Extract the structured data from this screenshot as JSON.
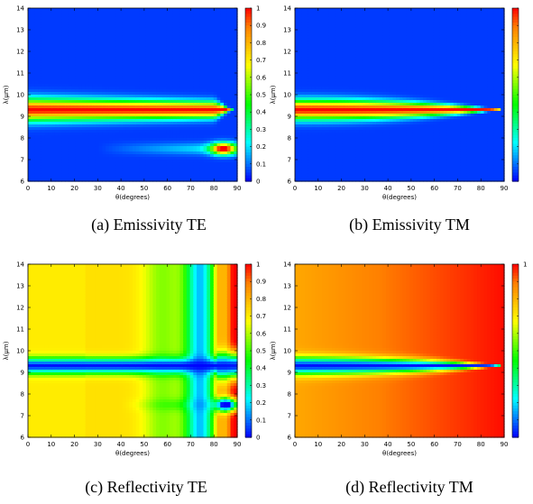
{
  "colorscale": [
    "#0000ff",
    "#0080ff",
    "#00ffff",
    "#00ff80",
    "#00ff00",
    "#80ff00",
    "#ffff00",
    "#ffc000",
    "#ff8000",
    "#ff0000"
  ],
  "chart_data": [
    {
      "type": "heatmap",
      "id": "a",
      "caption": "(a) Emissivity TE",
      "xlabel": "θ(degrees)",
      "ylabel": "λ(μm)",
      "xlim": [
        0,
        90
      ],
      "ylim": [
        6,
        14
      ],
      "zlim": [
        0,
        1
      ],
      "xticks": [
        0,
        10,
        20,
        30,
        40,
        50,
        60,
        70,
        80,
        90
      ],
      "yticks": [
        6,
        7,
        8,
        9,
        10,
        11,
        12,
        13,
        14
      ],
      "cbticks": [
        0,
        0.1,
        0.2,
        0.3,
        0.4,
        0.5,
        0.6,
        0.7,
        0.8,
        0.9,
        1
      ],
      "features": [
        {
          "kind": "resonance_band",
          "lambda_um": 9.3,
          "peak_value": 1.0,
          "extends_to_deg": 85,
          "behavior": "narrows toward grazing"
        },
        {
          "kind": "resonance_band",
          "lambda_um": 7.5,
          "peak_value": 1.0,
          "peak_at_deg": 84,
          "behavior": "faint below 60 deg, strong near 80-87 deg"
        }
      ]
    },
    {
      "type": "heatmap",
      "id": "b",
      "caption": "(b) Emissivity TM",
      "xlabel": "θ(degrees)",
      "ylabel": "λ(μm)",
      "xlim": [
        0,
        90
      ],
      "ylim": [
        6,
        14
      ],
      "zlim": [
        0,
        1
      ],
      "xticks": [
        0,
        10,
        20,
        30,
        40,
        50,
        60,
        70,
        80,
        90
      ],
      "yticks": [
        6,
        7,
        8,
        9,
        10,
        11,
        12,
        13,
        14
      ],
      "cbticks": [],
      "features": [
        {
          "kind": "resonance_band",
          "lambda_um": 9.3,
          "peak_value": 1.0,
          "extends_to_deg": 88,
          "behavior": "tapers to a point near 88 deg"
        }
      ]
    },
    {
      "type": "heatmap",
      "id": "c",
      "caption": "(c) Reflectivity TE",
      "xlabel": "θ(degrees)",
      "ylabel": "λ(μm)",
      "xlim": [
        0,
        90
      ],
      "ylim": [
        6,
        14
      ],
      "zlim": [
        0,
        1
      ],
      "xticks": [
        0,
        10,
        20,
        30,
        40,
        50,
        60,
        70,
        80,
        90
      ],
      "yticks": [
        6,
        7,
        8,
        9,
        10,
        11,
        12,
        13,
        14
      ],
      "cbticks": [
        0,
        0.1,
        0.2,
        0.3,
        0.4,
        0.5,
        0.6,
        0.7,
        0.8,
        0.9,
        1
      ],
      "features": [
        {
          "kind": "background",
          "value_range": [
            0.6,
            0.8
          ],
          "behavior": "yellow at low angle, green 55-65 deg, blue dip near 70-78 deg, red near 88 deg"
        },
        {
          "kind": "dip",
          "lambda_um": 9.3,
          "min_value": 0.0
        },
        {
          "kind": "dip",
          "lambda_um": 7.5,
          "min_value": 0.0,
          "at_deg": 84
        }
      ]
    },
    {
      "type": "heatmap",
      "id": "d",
      "caption": "(d) Reflectivity TM",
      "xlabel": "θ(degrees)",
      "ylabel": "λ(μm)",
      "xlim": [
        0,
        90
      ],
      "ylim": [
        6,
        14
      ],
      "zlim": [
        0,
        1
      ],
      "xticks": [
        0,
        10,
        20,
        30,
        40,
        50,
        60,
        70,
        80,
        90
      ],
      "yticks": [
        6,
        7,
        8,
        9,
        10,
        11,
        12,
        13,
        14
      ],
      "cbticks": [
        "1"
      ],
      "features": [
        {
          "kind": "background",
          "value_range": [
            0.8,
            1.0
          ],
          "behavior": "orange at low angle rising to red at grazing"
        },
        {
          "kind": "dip",
          "lambda_um": 9.3,
          "min_value": 0.0,
          "extends_to_deg": 88
        }
      ]
    }
  ]
}
